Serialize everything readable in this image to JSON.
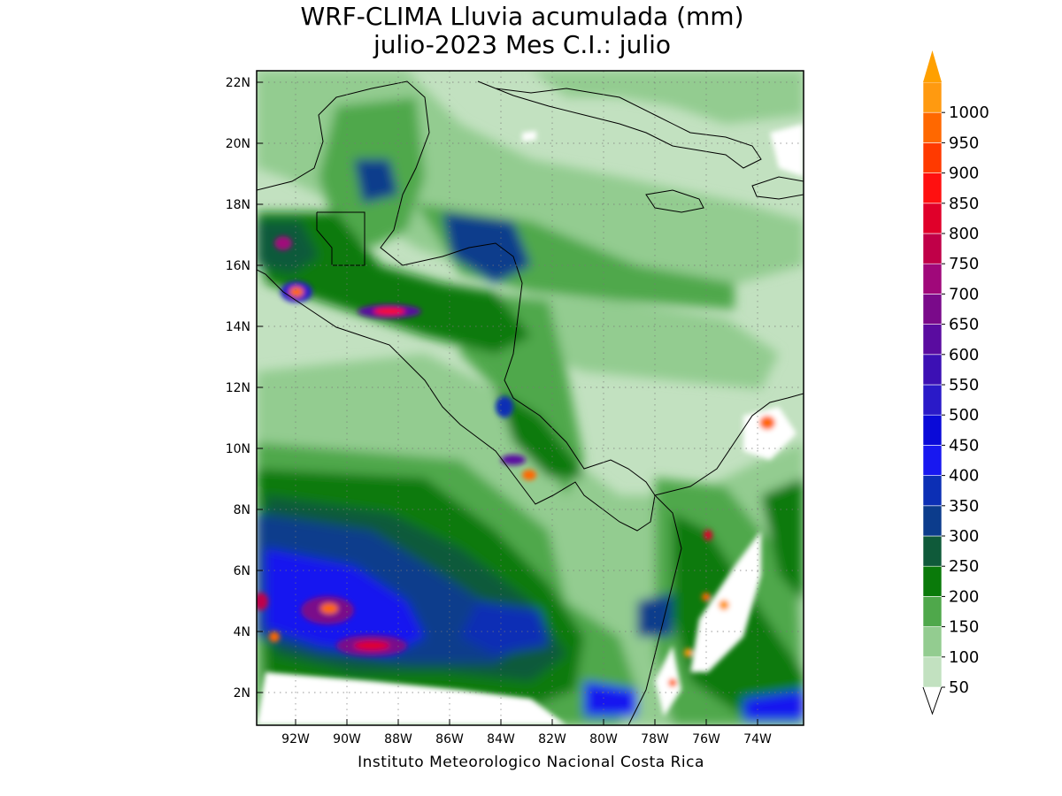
{
  "title": {
    "line1": "WRF-CLIMA Lluvia acumulada (mm)",
    "line2": "julio-2023 Mes C.I.: julio"
  },
  "map": {
    "lon_ticks": [
      "92W",
      "90W",
      "88W",
      "86W",
      "84W",
      "82W",
      "80W",
      "78W",
      "76W",
      "74W"
    ],
    "lat_ticks": [
      "22N",
      "20N",
      "18N",
      "16N",
      "14N",
      "12N",
      "10N",
      "8N",
      "6N",
      "4N",
      "2N"
    ]
  },
  "colorbar": {
    "labels": [
      "50",
      "100",
      "150",
      "200",
      "250",
      "300",
      "350",
      "400",
      "450",
      "500",
      "550",
      "600",
      "650",
      "700",
      "750",
      "800",
      "850",
      "900",
      "950",
      "1000"
    ],
    "colors": [
      "#c2e1c0",
      "#93cc90",
      "#4fa84b",
      "#0a7a0a",
      "#0f5a3a",
      "#0c3c8c",
      "#0c2fb5",
      "#1818f0",
      "#0a0ad8",
      "#2a1ac8",
      "#3c10b4",
      "#5a0ca0",
      "#7a0a8a",
      "#a0087a",
      "#c00048",
      "#e0002a",
      "#ff1010",
      "#ff3a00",
      "#ff6800",
      "#ff9a10"
    ],
    "arrow_color": "#ffa000"
  },
  "credit": "Instituto Meteorologico Nacional Costa Rica"
}
